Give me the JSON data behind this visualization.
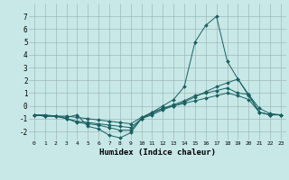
{
  "xlabel": "Humidex (Indice chaleur)",
  "ylabel": "",
  "background_color": "#c8e8e8",
  "grid_color": "#a0b8b8",
  "line_color": "#1a6060",
  "xlim": [
    -0.5,
    23.5
  ],
  "ylim": [
    -2.7,
    8.0
  ],
  "yticks": [
    -2,
    -1,
    0,
    1,
    2,
    3,
    4,
    5,
    6,
    7
  ],
  "xticks": [
    0,
    1,
    2,
    3,
    4,
    5,
    6,
    7,
    8,
    9,
    10,
    11,
    12,
    13,
    14,
    15,
    16,
    17,
    18,
    19,
    20,
    21,
    22,
    23
  ],
  "series": [
    {
      "x": [
        0,
        1,
        2,
        3,
        4,
        5,
        6,
        7,
        8,
        9,
        10,
        11,
        12,
        13,
        14,
        15,
        16,
        17,
        18,
        19,
        20,
        21,
        22,
        23
      ],
      "y": [
        -0.7,
        -0.8,
        -0.8,
        -0.9,
        -0.7,
        -1.6,
        -1.8,
        -2.3,
        -2.5,
        -2.1,
        -1.0,
        -0.5,
        0.0,
        0.5,
        1.5,
        5.0,
        6.3,
        7.0,
        3.5,
        2.1,
        0.9,
        -0.2,
        -0.6,
        -0.7
      ]
    },
    {
      "x": [
        0,
        1,
        2,
        3,
        4,
        5,
        6,
        7,
        8,
        9,
        10,
        11,
        12,
        13,
        14,
        15,
        16,
        17,
        18,
        19,
        20,
        21,
        22,
        23
      ],
      "y": [
        -0.7,
        -0.8,
        -0.8,
        -1.0,
        -1.3,
        -1.4,
        -1.5,
        -1.7,
        -1.9,
        -1.9,
        -1.0,
        -0.7,
        -0.3,
        0.0,
        0.3,
        0.7,
        1.1,
        1.5,
        1.8,
        2.1,
        0.8,
        -0.5,
        -0.7,
        -0.7
      ]
    },
    {
      "x": [
        0,
        1,
        2,
        3,
        4,
        5,
        6,
        7,
        8,
        9,
        10,
        11,
        12,
        13,
        14,
        15,
        16,
        17,
        18,
        19,
        20,
        21,
        22,
        23
      ],
      "y": [
        -0.7,
        -0.8,
        -0.8,
        -1.0,
        -1.2,
        -1.3,
        -1.4,
        -1.5,
        -1.6,
        -1.7,
        -1.0,
        -0.6,
        -0.2,
        0.1,
        0.4,
        0.8,
        1.0,
        1.2,
        1.4,
        1.0,
        0.9,
        -0.5,
        -0.7,
        -0.7
      ]
    },
    {
      "x": [
        0,
        1,
        2,
        3,
        4,
        5,
        6,
        7,
        8,
        9,
        10,
        11,
        12,
        13,
        14,
        15,
        16,
        17,
        18,
        19,
        20,
        21,
        22,
        23
      ],
      "y": [
        -0.7,
        -0.7,
        -0.8,
        -0.8,
        -0.9,
        -1.0,
        -1.1,
        -1.2,
        -1.3,
        -1.4,
        -0.9,
        -0.5,
        -0.2,
        0.0,
        0.2,
        0.4,
        0.6,
        0.8,
        1.0,
        0.8,
        0.5,
        -0.5,
        -0.7,
        -0.7
      ]
    }
  ]
}
